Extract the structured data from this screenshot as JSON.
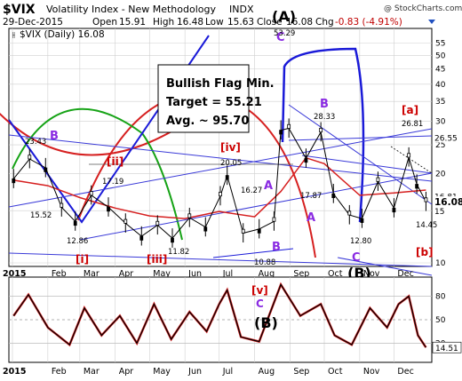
{
  "header": {
    "symbol": "$VIX",
    "name": "Volatility Index - New Methodology",
    "exchange": "INDX",
    "date": "29-Dec-2015",
    "open_label": "Open",
    "open": "15.91",
    "high_label": "High",
    "high": "16.48",
    "low_label": "Low",
    "low": "15.63",
    "close_label": "Close",
    "close": "16.08",
    "chg_label": "Chg",
    "chg": "-0.83 (-4.91%)",
    "watermark": "@ StockCharts.com"
  },
  "legend": {
    "main_series": "$VIX (Daily) 16.08"
  },
  "annotation_box": {
    "line1": "Bullish Flag Min.",
    "line2": "Target = 55.21",
    "line3": "Avg. ~ 95.70"
  },
  "colors": {
    "candle": "#000000",
    "ma_red": "#d62020",
    "ma_blue": "#1a1ad8",
    "label_purple": "#8a2be2",
    "label_red": "#cc0000",
    "arc_green": "#16a316",
    "price_marker": "#000000",
    "grid": "#cfcfcf"
  },
  "chart_data": [
    {
      "type": "line",
      "title": "$VIX (Daily) 16.08",
      "xlabel": "",
      "ylabel": "",
      "scale": "log",
      "ylim": [
        10,
        60
      ],
      "x_ticks": [
        "2015",
        "Feb",
        "Mar",
        "Apr",
        "May",
        "Jun",
        "Jul",
        "Aug",
        "Sep",
        "Oct",
        "Nov",
        "Dec"
      ],
      "y_ticks": [
        10,
        15,
        20,
        25,
        30,
        35,
        40,
        45,
        50,
        55
      ],
      "grid": true,
      "series": [
        {
          "name": "$VIX (Daily) 16.08",
          "x": [
            "2015-01-02",
            "2015-01-16",
            "2015-01-30",
            "2015-02-13",
            "2015-02-25",
            "2015-03-11",
            "2015-03-26",
            "2015-04-10",
            "2015-04-24",
            "2015-05-08",
            "2015-05-21",
            "2015-06-05",
            "2015-06-19",
            "2015-07-02",
            "2015-07-08",
            "2015-07-22",
            "2015-08-05",
            "2015-08-18",
            "2015-08-24",
            "2015-08-31",
            "2015-09-15",
            "2015-09-28",
            "2015-10-09",
            "2015-10-23",
            "2015-11-03",
            "2015-11-17",
            "2015-12-01",
            "2015-12-14",
            "2015-12-21",
            "2015-12-29"
          ],
          "values": [
            19.2,
            22.4,
            20.9,
            15.4,
            13.8,
            16.9,
            15.4,
            13.6,
            12.3,
            13.4,
            12.1,
            14.2,
            13.2,
            16.8,
            19.7,
            12.6,
            13.0,
            13.8,
            28.0,
            28.4,
            22.5,
            27.6,
            17.1,
            14.5,
            14.1,
            18.8,
            15.3,
            22.7,
            18.4,
            16.08
          ]
        },
        {
          "name": "",
          "x": [
            "2015-01-02",
            "2015-02-01",
            "2015-03-01",
            "2015-04-01",
            "2015-05-01",
            "2015-06-01",
            "2015-07-01",
            "2015-08-01",
            "2015-08-24",
            "2015-09-15",
            "2015-10-01",
            "2015-11-01",
            "2015-12-01",
            "2015-12-29"
          ],
          "values": [
            19.0,
            18.2,
            16.6,
            15.3,
            14.4,
            14.1,
            14.9,
            14.3,
            17.4,
            22.6,
            21.6,
            16.9,
            17.2,
            17.6
          ]
        }
      ],
      "price_markers": [
        {
          "value": 26.55,
          "label": "26.55"
        },
        {
          "value": 16.81,
          "label": "16.81"
        },
        {
          "value": 16.08,
          "label": "16.08"
        },
        {
          "value": 15.0,
          "label": "15"
        }
      ],
      "value_labels": [
        {
          "date": "2015-01-06",
          "value": 23.43,
          "label": "23.43"
        },
        {
          "date": "2015-01-12",
          "value": 15.52,
          "label": "15.52"
        },
        {
          "date": "2015-02-26",
          "value": 12.86,
          "label": "12.86"
        },
        {
          "date": "2015-03-25",
          "value": 17.19,
          "label": "17.19"
        },
        {
          "date": "2015-05-22",
          "value": 11.82,
          "label": "11.82"
        },
        {
          "date": "2015-07-01",
          "value": 20.05,
          "label": "20.05"
        },
        {
          "date": "2015-07-20",
          "value": 16.27,
          "label": "16.27"
        },
        {
          "date": "2015-08-05",
          "value": 10.88,
          "label": "10.88"
        },
        {
          "date": "2015-08-24",
          "value": 53.29,
          "label": "53.29"
        },
        {
          "date": "2015-09-23",
          "value": 28.33,
          "label": "28.33"
        },
        {
          "date": "2015-09-24",
          "value": 17.87,
          "label": "17.87"
        },
        {
          "date": "2015-10-26",
          "value": 12.8,
          "label": "12.80"
        },
        {
          "date": "2015-12-14",
          "value": 26.81,
          "label": "26.81"
        },
        {
          "date": "2015-12-22",
          "value": 14.45,
          "label": "14.45"
        }
      ],
      "wave_labels": [
        {
          "text": "(A)",
          "color": "#000000"
        },
        {
          "text": "B",
          "color": "#8a2be2"
        },
        {
          "text": "[i]",
          "color": "#cc0000"
        },
        {
          "text": "[ii]",
          "color": "#cc0000"
        },
        {
          "text": "[iii]",
          "color": "#cc0000"
        },
        {
          "text": "[iv]",
          "color": "#cc0000"
        },
        {
          "text": "A",
          "color": "#8a2be2"
        },
        {
          "text": "B",
          "color": "#8a2be2"
        },
        {
          "text": "C",
          "color": "#8a2be2"
        },
        {
          "text": "B",
          "color": "#8a2be2"
        },
        {
          "text": "A",
          "color": "#8a2be2"
        },
        {
          "text": "C",
          "color": "#8a2be2"
        },
        {
          "text": "(B)",
          "color": "#000000"
        },
        {
          "text": "[a]",
          "color": "#cc0000"
        },
        {
          "text": "[b]",
          "color": "#cc0000"
        }
      ]
    },
    {
      "type": "line",
      "title": "",
      "ylim": [
        0,
        100
      ],
      "x_ticks": [
        "2015",
        "Feb",
        "Mar",
        "Apr",
        "May",
        "Jun",
        "Jul",
        "Aug",
        "Sep",
        "Oct",
        "Nov",
        "Dec"
      ],
      "y_ticks": [
        20,
        50,
        80
      ],
      "grid": true,
      "series": [
        {
          "name": "",
          "x": [
            "2015-01-02",
            "2015-01-15",
            "2015-02-01",
            "2015-02-20",
            "2015-03-05",
            "2015-03-20",
            "2015-04-05",
            "2015-04-20",
            "2015-05-05",
            "2015-05-20",
            "2015-06-05",
            "2015-06-20",
            "2015-07-01",
            "2015-07-08",
            "2015-07-20",
            "2015-08-05",
            "2015-08-24",
            "2015-09-10",
            "2015-09-28",
            "2015-10-10",
            "2015-10-25",
            "2015-11-10",
            "2015-11-25",
            "2015-12-05",
            "2015-12-14",
            "2015-12-22",
            "2015-12-29"
          ],
          "values": [
            55,
            82,
            40,
            18,
            65,
            30,
            55,
            20,
            70,
            25,
            60,
            35,
            70,
            88,
            28,
            22,
            95,
            55,
            70,
            30,
            18,
            65,
            40,
            70,
            80,
            30,
            14.51
          ]
        }
      ],
      "price_markers": [
        {
          "value": 14.51,
          "label": "14.51"
        }
      ],
      "wave_labels": [
        {
          "text": "[v]",
          "color": "#cc0000"
        },
        {
          "text": "C",
          "color": "#8a2be2"
        },
        {
          "text": "(B)",
          "color": "#000000"
        }
      ]
    }
  ]
}
